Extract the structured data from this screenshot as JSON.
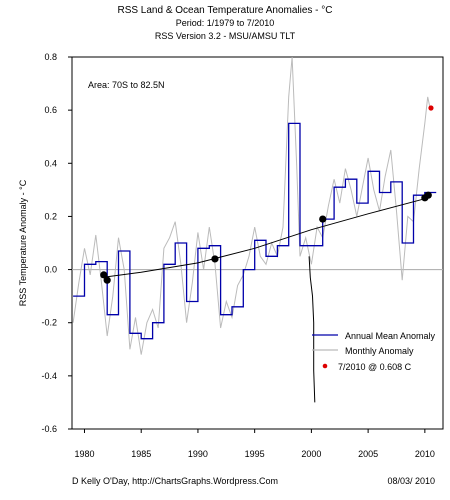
{
  "chart_data": {
    "type": "line",
    "title": "RSS Land & Ocean Temperature Anomalies - °C",
    "subtitle1": "Period: 1/1979  to 7/2010",
    "subtitle2": "RSS Version 3.2 - MSU/AMSU TLT",
    "annotation": "Area: 70S to 82.5N",
    "xlabel": "",
    "ylabel": "RSS Temperature Anomaly - °C",
    "xlim": [
      1978.9,
      2011.6
    ],
    "ylim": [
      -0.6,
      0.8
    ],
    "x_ticks": [
      1980,
      1985,
      1990,
      1995,
      2000,
      2005,
      2010
    ],
    "x_tick_labels": [
      "1980",
      "1985",
      "1990",
      "1995",
      "2000",
      "2005",
      "2010"
    ],
    "y_ticks": [
      -0.6,
      -0.4,
      -0.2,
      0.0,
      0.2,
      0.4,
      0.6,
      0.8
    ],
    "y_tick_labels": [
      "-0.6",
      "-0.4",
      "-0.2",
      "0.0",
      "0.2",
      "0.4",
      "0.6",
      "0.8"
    ],
    "zero_line": 0.0,
    "legend": {
      "placement": "bottom-right",
      "entries": [
        "Annual Mean Anomaly",
        "Monthly Anomaly",
        "7/2010 @ 0.608 C"
      ]
    },
    "series": [
      {
        "name": "Annual Mean Anomaly",
        "color": "#0000aa",
        "step": true,
        "x": [
          1979,
          1980,
          1981,
          1982,
          1983,
          1984,
          1985,
          1986,
          1987,
          1988,
          1989,
          1990,
          1991,
          1992,
          1993,
          1994,
          1995,
          1996,
          1997,
          1998,
          1999,
          2000,
          2001,
          2002,
          2003,
          2004,
          2005,
          2006,
          2007,
          2008,
          2009,
          2010
        ],
        "values": [
          -0.1,
          0.02,
          0.03,
          -0.17,
          0.07,
          -0.24,
          -0.26,
          -0.2,
          0.02,
          0.1,
          -0.12,
          0.08,
          0.09,
          -0.17,
          -0.14,
          0.0,
          0.11,
          0.05,
          0.09,
          0.55,
          0.09,
          0.09,
          0.19,
          0.31,
          0.34,
          0.25,
          0.37,
          0.29,
          0.33,
          0.1,
          0.28,
          0.29
        ]
      },
      {
        "name": "Monthly Anomaly",
        "color": "#bbbbbb",
        "x": [
          1979.0,
          1979.5,
          1980.0,
          1980.5,
          1981.0,
          1981.5,
          1982.0,
          1982.5,
          1983.0,
          1983.5,
          1984.0,
          1984.5,
          1985.0,
          1985.5,
          1986.0,
          1986.5,
          1987.0,
          1987.5,
          1988.0,
          1988.5,
          1989.0,
          1989.5,
          1990.0,
          1990.5,
          1991.0,
          1991.5,
          1992.0,
          1992.5,
          1993.0,
          1993.5,
          1994.0,
          1994.5,
          1995.0,
          1995.5,
          1996.0,
          1996.5,
          1997.0,
          1997.5,
          1998.0,
          1998.3,
          1998.7,
          1999.0,
          1999.5,
          2000.0,
          2000.5,
          2001.0,
          2001.5,
          2002.0,
          2002.5,
          2003.0,
          2003.5,
          2004.0,
          2004.5,
          2005.0,
          2005.5,
          2006.0,
          2006.5,
          2007.0,
          2007.5,
          2008.0,
          2008.5,
          2009.0,
          2009.5,
          2010.0,
          2010.25,
          2010.5
        ],
        "values": [
          -0.2,
          -0.05,
          0.08,
          -0.02,
          0.13,
          -0.05,
          -0.25,
          -0.1,
          0.12,
          0.0,
          -0.3,
          -0.18,
          -0.32,
          -0.2,
          -0.15,
          -0.22,
          0.08,
          0.12,
          0.18,
          0.02,
          -0.2,
          -0.05,
          0.14,
          0.0,
          0.16,
          0.02,
          -0.22,
          -0.12,
          -0.18,
          -0.06,
          -0.02,
          0.05,
          0.16,
          0.05,
          0.02,
          0.1,
          0.05,
          0.16,
          0.65,
          0.8,
          0.4,
          0.05,
          0.12,
          0.02,
          0.16,
          0.12,
          0.24,
          0.34,
          0.25,
          0.38,
          0.3,
          0.2,
          0.31,
          0.42,
          0.3,
          0.22,
          0.35,
          0.45,
          0.22,
          -0.04,
          0.2,
          0.18,
          0.38,
          0.55,
          0.65,
          0.6
        ]
      },
      {
        "name": "7/2010 @ 0.608 C",
        "color": "#dd0000",
        "x": [
          2010.54
        ],
        "values": [
          0.608
        ]
      },
      {
        "name": "Trend",
        "color": "#000000",
        "x": [
          1981.5,
          1985,
          1990,
          1995,
          2000,
          2005,
          2010.3
        ],
        "values": [
          -0.03,
          -0.01,
          0.025,
          0.08,
          0.15,
          0.21,
          0.27
        ]
      }
    ],
    "trend_markers": {
      "x": [
        1981.7,
        1982.0,
        1991.5,
        2001.0,
        2010.0,
        2010.3
      ],
      "values": [
        -0.02,
        -0.04,
        0.04,
        0.19,
        0.27,
        0.28
      ]
    },
    "vertical_segments": [
      {
        "x": [
          1999.8,
          1999.9,
          2000.1,
          2000.2,
          2000.2,
          2000.3
        ],
        "values": [
          0.05,
          -0.03,
          -0.1,
          -0.2,
          -0.38,
          -0.5
        ]
      }
    ]
  },
  "footer": {
    "author": "D Kelly O'Day, http://ChartsGraphs.Wordpress.Com",
    "date": "08/03/ 2010"
  }
}
